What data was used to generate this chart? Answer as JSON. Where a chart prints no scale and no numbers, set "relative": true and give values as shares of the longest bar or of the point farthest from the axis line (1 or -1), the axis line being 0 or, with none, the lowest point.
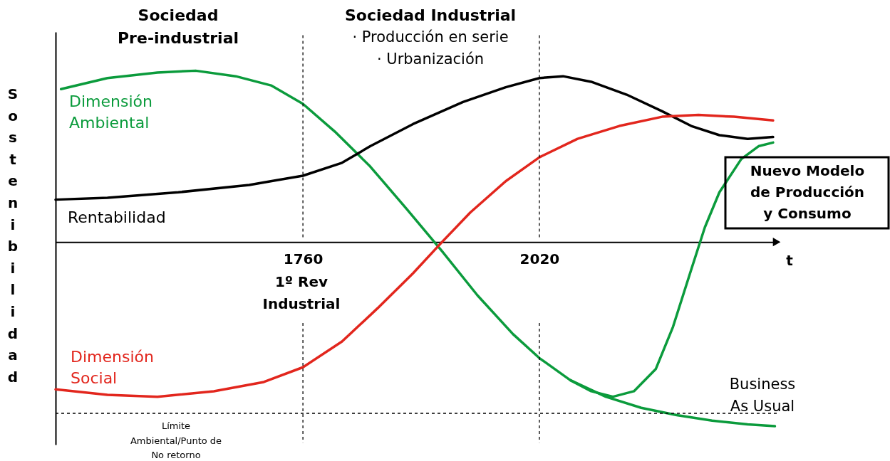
{
  "chart_data": {
    "type": "line",
    "relative": true,
    "xlabel": "t",
    "ylabel": "Sostenibilidad",
    "xlim": [
      1488,
      2281
    ],
    "xticks": [
      1760,
      2020
    ],
    "grid": false,
    "legend": false,
    "marker": "none",
    "line_style": "solid",
    "series": [
      {
        "name": "Dimensión Ambiental",
        "color": "#0b9b3c",
        "x": [
          1494,
          1545,
          1600,
          1642,
          1686,
          1725,
          1760,
          1795,
          1834,
          1874,
          1913,
          1952,
          1991,
          2020,
          2054,
          2093,
          2132,
          2171,
          2210,
          2249,
          2279
        ],
        "values": [
          0.83,
          0.89,
          0.92,
          0.93,
          0.9,
          0.85,
          0.75,
          0.6,
          0.41,
          0.18,
          -0.05,
          -0.29,
          -0.5,
          -0.63,
          -0.75,
          -0.84,
          -0.9,
          -0.94,
          -0.97,
          -0.99,
          -1
        ]
      },
      {
        "color": "#0b9b3c",
        "x": [
          2054,
          2077,
          2101,
          2124,
          2148,
          2167,
          2187,
          2202,
          2218,
          2242,
          2261,
          2277
        ],
        "values": [
          -0.75,
          -0.81,
          -0.84,
          -0.81,
          -0.69,
          -0.46,
          -0.15,
          0.08,
          0.27,
          0.45,
          0.52,
          0.54
        ]
      },
      {
        "name": "Rentabilidad",
        "color": "#000000",
        "x": [
          1488,
          1545,
          1623,
          1701,
          1760,
          1803,
          1834,
          1881,
          1936,
          1983,
          2020,
          2046,
          2077,
          2116,
          2155,
          2187,
          2218,
          2249,
          2277
        ],
        "values": [
          0.23,
          0.24,
          0.27,
          0.31,
          0.36,
          0.43,
          0.52,
          0.64,
          0.76,
          0.84,
          0.89,
          0.9,
          0.87,
          0.8,
          0.71,
          0.63,
          0.58,
          0.56,
          0.57
        ]
      },
      {
        "name": "Dimensión Social",
        "color": "#e2261d",
        "x": [
          1488,
          1545,
          1600,
          1662,
          1717,
          1760,
          1803,
          1842,
          1881,
          1913,
          1944,
          1983,
          2020,
          2062,
          2108,
          2155,
          2195,
          2234,
          2277
        ],
        "values": [
          -0.8,
          -0.83,
          -0.84,
          -0.81,
          -0.76,
          -0.68,
          -0.54,
          -0.36,
          -0.17,
          0.0,
          0.16,
          0.33,
          0.46,
          0.56,
          0.63,
          0.68,
          0.69,
          0.68,
          0.66
        ]
      }
    ],
    "ref_lines": [
      {
        "axis": "x",
        "value": 1760,
        "label": null,
        "color": "#000000",
        "line_style": "dashed"
      },
      {
        "axis": "x",
        "value": 2020,
        "label": null,
        "color": "#000000",
        "line_style": "dashed"
      },
      {
        "axis": "y",
        "value": -0.93,
        "label": "Límite Ambiental/Punto de No retorno",
        "color": "#000000",
        "line_style": "dashed"
      }
    ],
    "annotations": [
      "Sociedad Pre-industrial",
      "Sociedad Industrial",
      "· Producción en serie",
      "· Urbanización",
      "1º Rev Industrial",
      "Nuevo Modelo de Producción y Consumo",
      "Business As Usual"
    ]
  }
}
